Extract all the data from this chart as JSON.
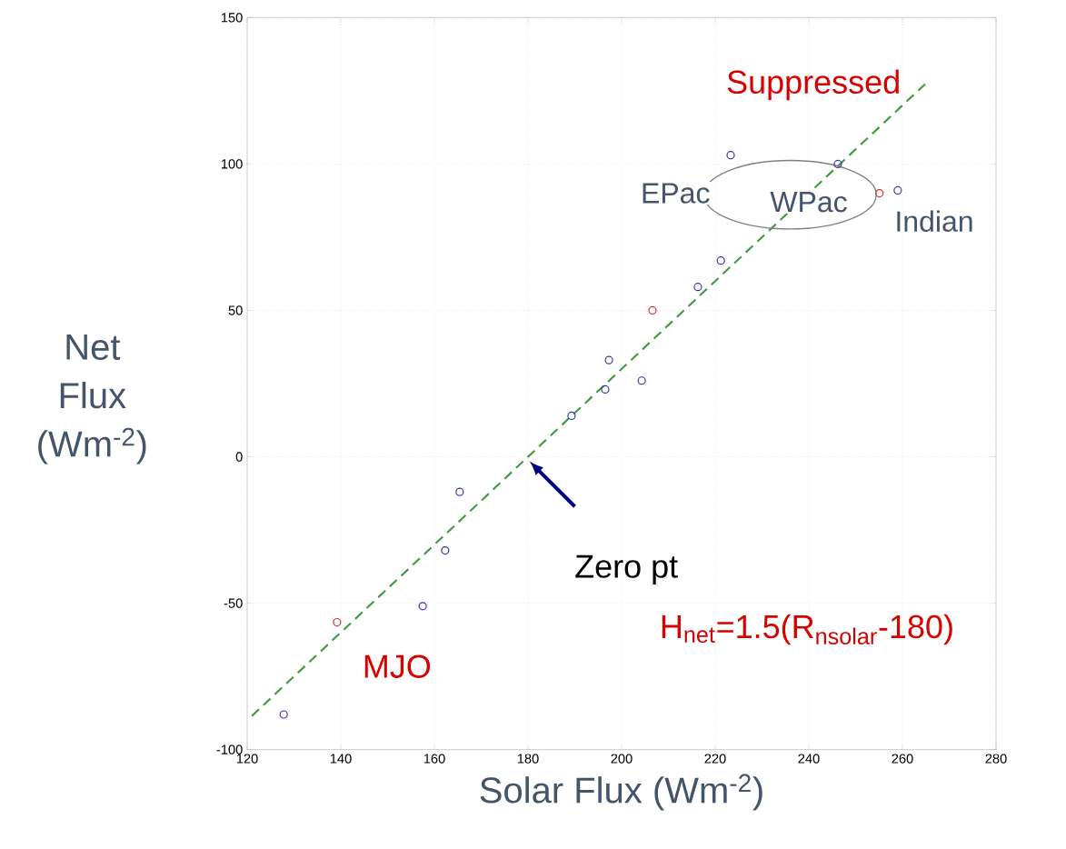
{
  "chart_data": {
    "type": "scatter",
    "xlabel": "Solar Flux (Wm$^{-2}$)",
    "ylabel": "Net Flux (Wm$^{-2}$)",
    "xlim": [
      120,
      280
    ],
    "ylim": [
      -100,
      150
    ],
    "xticks": [
      120,
      140,
      160,
      180,
      200,
      220,
      240,
      260,
      280
    ],
    "yticks": [
      -100,
      -50,
      0,
      50,
      100,
      150
    ],
    "grid": true,
    "marker": "circle",
    "series": [
      {
        "color": "#3434b4",
        "x": [
          127.8,
          157.5,
          162.3,
          165.4,
          189.3,
          196.5,
          197.3,
          204.3,
          216.3,
          221.2,
          223.3,
          246.2,
          259
        ],
        "values": [
          -88,
          -51,
          -32,
          -12,
          14,
          23,
          33,
          26,
          58,
          67,
          103,
          100,
          91
        ]
      },
      {
        "color": "#d03030",
        "x": [
          139.2,
          206.6,
          255.1
        ],
        "values": [
          -56.5,
          50,
          90
        ]
      },
      {
        "type": "line",
        "color": "#3f9a3f",
        "line_style": "dashed",
        "marker": "none",
        "x": [
          121,
          265
        ],
        "values": [
          -88.5,
          127.5
        ]
      }
    ],
    "annotations": [
      "Suppressed",
      "EPac",
      "WPac",
      "Indian",
      "MJO",
      "Zero pt",
      "H$_{net}$=1.5(R$_{nsolar}$-180)"
    ]
  }
}
